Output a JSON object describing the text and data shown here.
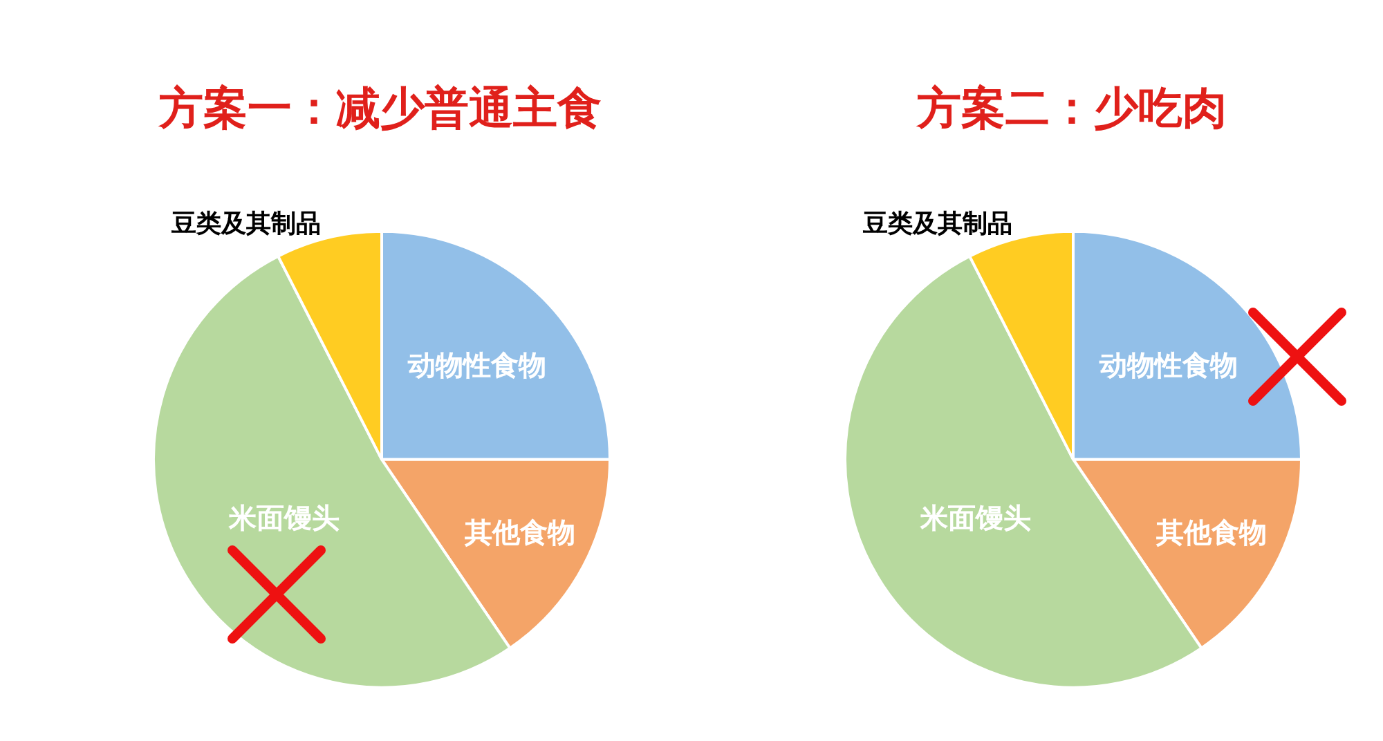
{
  "chart_data": [
    {
      "type": "pie",
      "title": "方案一：减少普通主食",
      "categories": [
        "动物性食物",
        "其他食物",
        "米面馒头",
        "豆类及其制品"
      ],
      "values": [
        25,
        15.5,
        52,
        7.5
      ],
      "colors": [
        "#92bfe8",
        "#f4a468",
        "#b7d99e",
        "#ffcc22"
      ]
    },
    {
      "type": "pie",
      "title": "方案二：少吃肉",
      "categories": [
        "动物性食物",
        "其他食物",
        "米面馒头",
        "豆类及其制品"
      ],
      "values": [
        25,
        15.5,
        52,
        7.5
      ],
      "colors": [
        "#92bfe8",
        "#f4a468",
        "#b7d99e",
        "#ffcc22"
      ]
    }
  ]
}
